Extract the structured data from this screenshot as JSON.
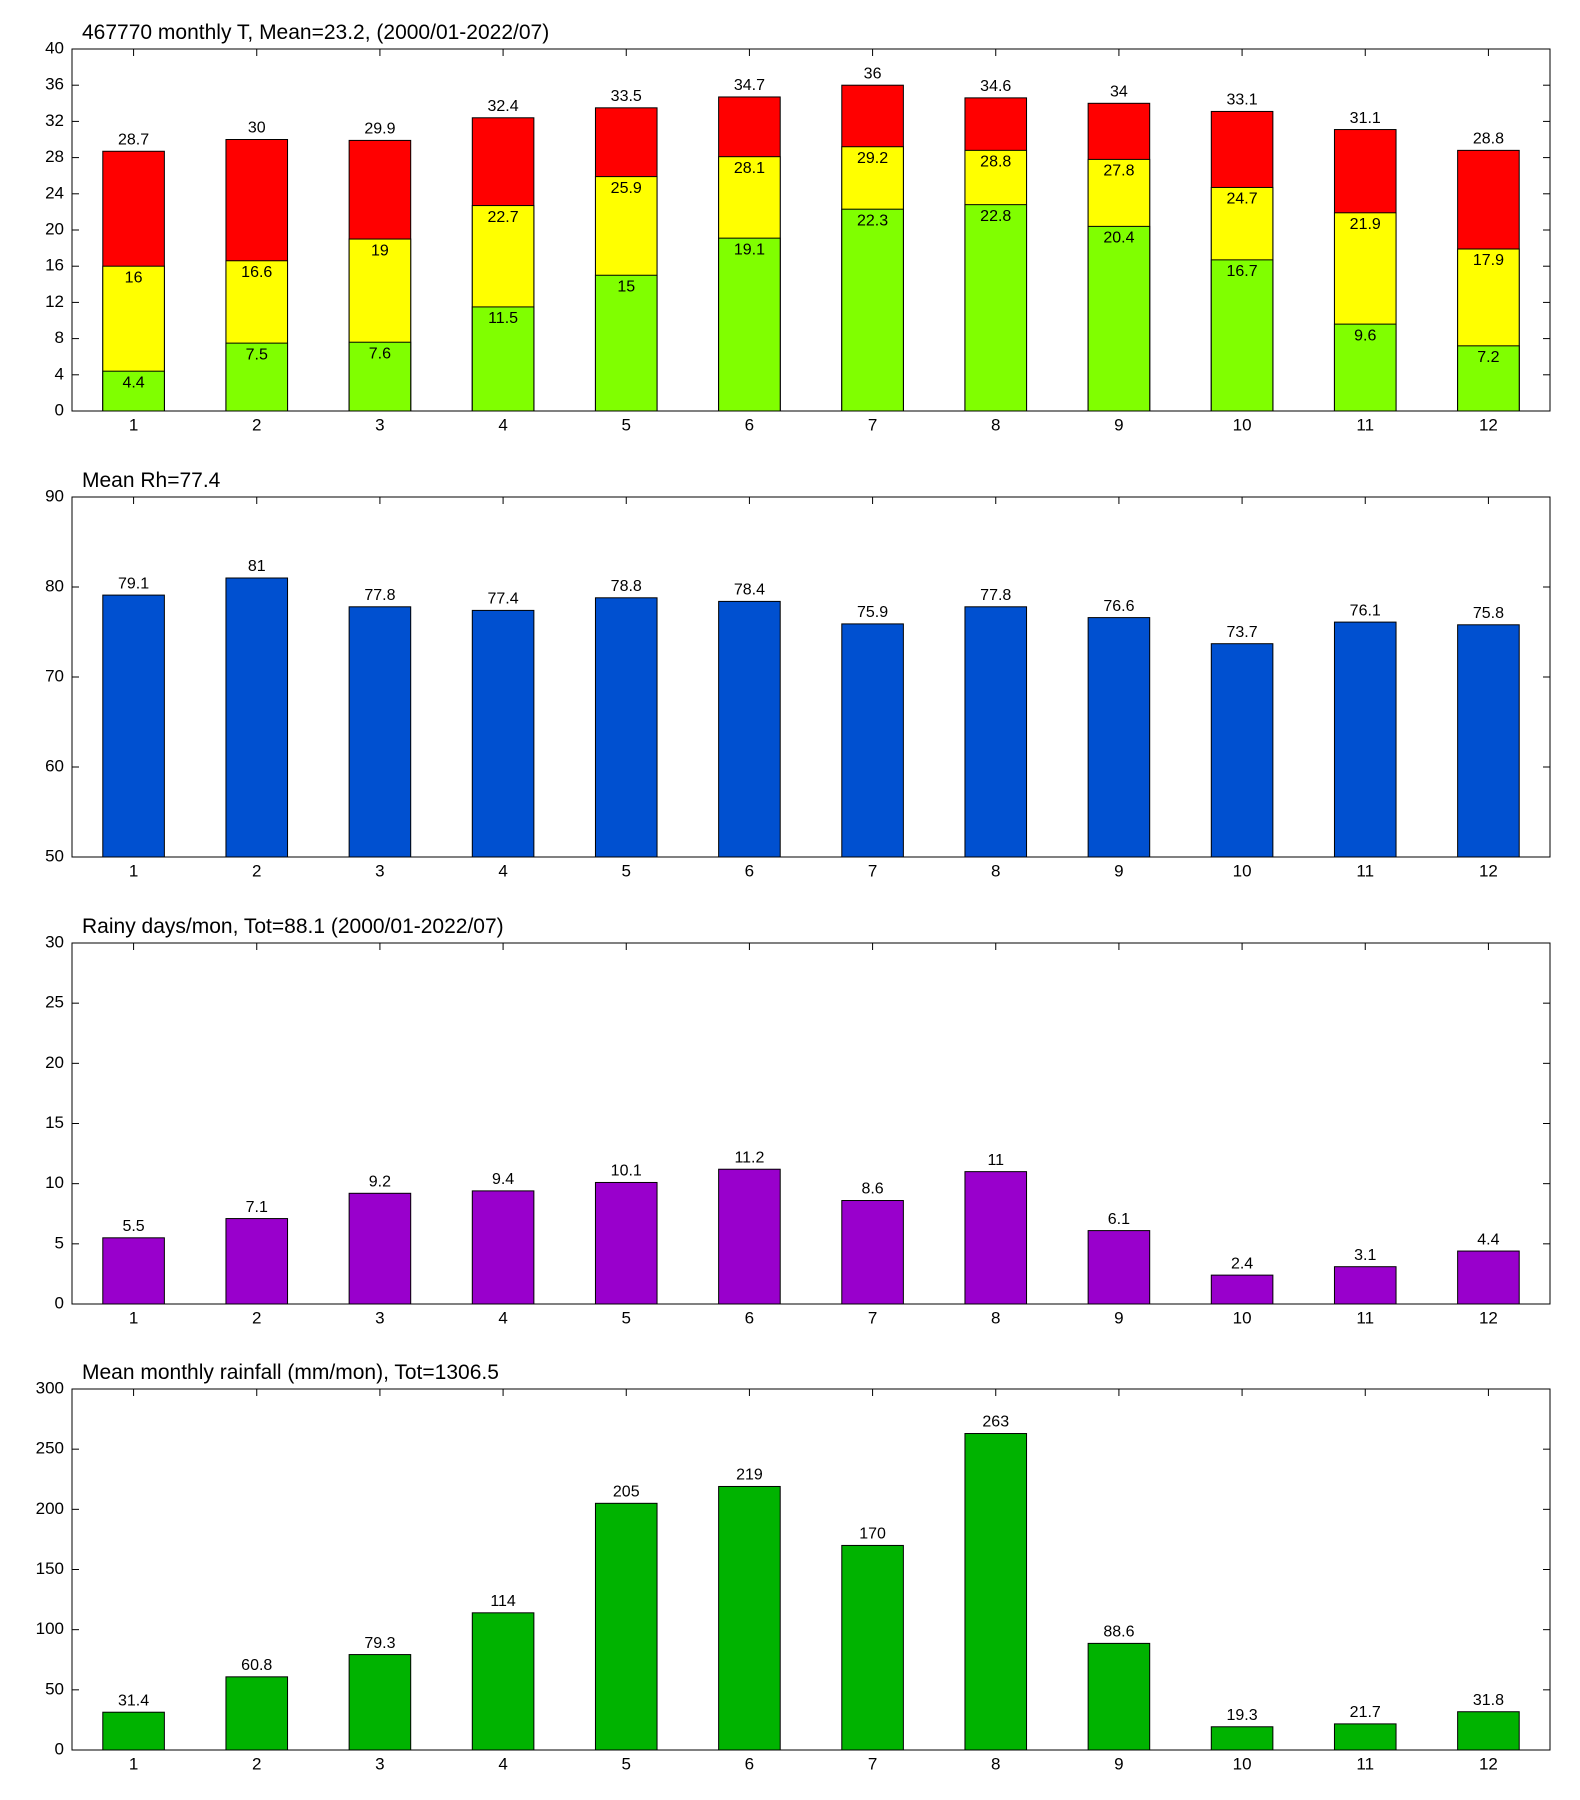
{
  "chart_data": [
    {
      "type": "bar",
      "title": "467770 monthly T, Mean=23.2, (2000/01-2022/07)",
      "categories": [
        "1",
        "2",
        "3",
        "4",
        "5",
        "6",
        "7",
        "8",
        "9",
        "10",
        "11",
        "12"
      ],
      "series": [
        {
          "color": "#ff0000",
          "values": [
            28.7,
            30,
            29.9,
            32.4,
            33.5,
            34.7,
            36,
            34.6,
            34,
            33.1,
            31.1,
            28.8
          ]
        },
        {
          "color": "#ffff00",
          "values": [
            16,
            16.6,
            19,
            22.7,
            25.9,
            28.1,
            29.2,
            28.8,
            27.8,
            24.7,
            21.9,
            17.9
          ]
        },
        {
          "color": "#80ff00",
          "values": [
            4.4,
            7.5,
            7.6,
            11.5,
            15,
            19.1,
            22.3,
            22.8,
            20.4,
            16.7,
            9.6,
            7.2
          ]
        }
      ],
      "ylim": [
        0,
        40
      ],
      "yticks": [
        0,
        4,
        8,
        12,
        16,
        20,
        24,
        28,
        32,
        36,
        40
      ]
    },
    {
      "type": "bar",
      "title": "Mean Rh=77.4",
      "categories": [
        "1",
        "2",
        "3",
        "4",
        "5",
        "6",
        "7",
        "8",
        "9",
        "10",
        "11",
        "12"
      ],
      "series": [
        {
          "color": "#0050d0",
          "values": [
            79.1,
            81,
            77.8,
            77.4,
            78.8,
            78.4,
            75.9,
            77.8,
            76.6,
            73.7,
            76.1,
            75.8
          ]
        }
      ],
      "ylim": [
        50,
        90
      ],
      "yticks": [
        50,
        60,
        70,
        80,
        90
      ]
    },
    {
      "type": "bar",
      "title": "Rainy days/mon, Tot=88.1 (2000/01-2022/07)",
      "categories": [
        "1",
        "2",
        "3",
        "4",
        "5",
        "6",
        "7",
        "8",
        "9",
        "10",
        "11",
        "12"
      ],
      "series": [
        {
          "color": "#9900cc",
          "values": [
            5.5,
            7.1,
            9.2,
            9.4,
            10.1,
            11.2,
            8.6,
            11,
            6.1,
            2.4,
            3.1,
            4.4
          ]
        }
      ],
      "ylim": [
        0,
        30
      ],
      "yticks": [
        0,
        5,
        10,
        15,
        20,
        25,
        30
      ]
    },
    {
      "type": "bar",
      "title": "Mean monthly rainfall (mm/mon), Tot=1306.5",
      "categories": [
        "1",
        "2",
        "3",
        "4",
        "5",
        "6",
        "7",
        "8",
        "9",
        "10",
        "11",
        "12"
      ],
      "series": [
        {
          "color": "#00b300",
          "values": [
            31.4,
            60.8,
            79.3,
            114,
            205,
            219,
            170,
            263,
            88.6,
            19.3,
            21.7,
            31.8
          ]
        }
      ],
      "ylim": [
        0,
        300
      ],
      "yticks": [
        0,
        50,
        100,
        150,
        200,
        250,
        300
      ]
    }
  ]
}
